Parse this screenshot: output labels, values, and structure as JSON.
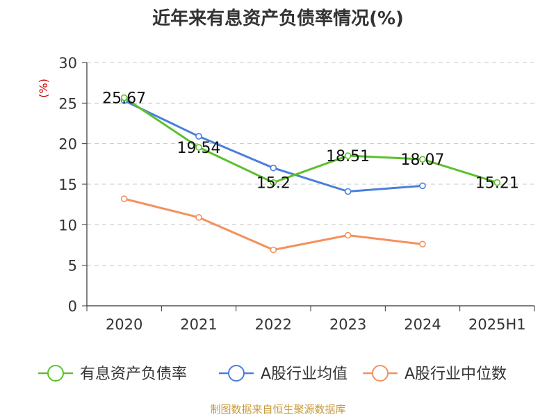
{
  "chart_data": {
    "type": "line",
    "title": "近年来有息资产负债率情况(%)",
    "ylabel": "(%)",
    "xlabel": "",
    "categories": [
      "2020",
      "2021",
      "2022",
      "2023",
      "2024",
      "2025H1"
    ],
    "ylim": [
      0,
      30
    ],
    "yticks": [
      0,
      5,
      10,
      15,
      20,
      25,
      30
    ],
    "grid": true,
    "legend_position": "bottom",
    "series": [
      {
        "name": "有息资产负债率",
        "color": "#5bc12d",
        "values": [
          25.67,
          19.54,
          15.2,
          18.51,
          18.07,
          15.21
        ],
        "labels": [
          "25.67",
          "19.54",
          "15.2",
          "18.51",
          "18.07",
          "15.21"
        ]
      },
      {
        "name": "A股行业均值",
        "color": "#4a7fdb",
        "values": [
          25.3,
          20.9,
          17.0,
          14.1,
          14.8,
          null
        ]
      },
      {
        "name": "A股行业中位数",
        "color": "#f4915d",
        "values": [
          13.2,
          10.9,
          6.9,
          8.7,
          7.6,
          null
        ]
      }
    ]
  },
  "source": "制图数据来自恒生聚源数据库"
}
